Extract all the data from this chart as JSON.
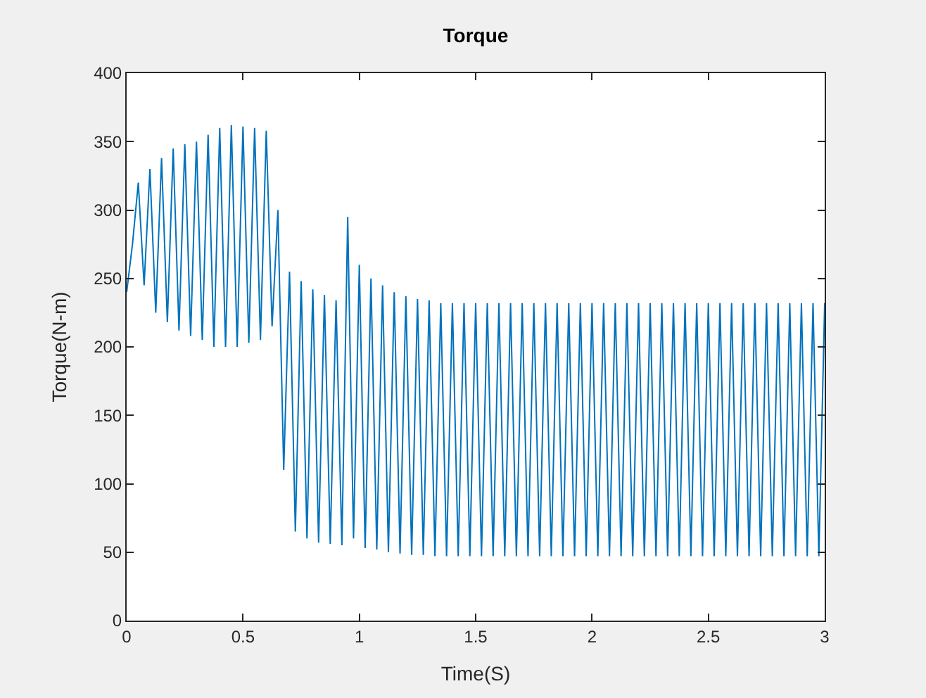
{
  "chart_data": {
    "type": "line",
    "title": "Torque",
    "xlabel": "Time(S)",
    "ylabel": "Torque(N-m)",
    "xlim": [
      0,
      3
    ],
    "xticks": [
      0,
      0.5,
      1,
      1.5,
      2,
      2.5,
      3
    ],
    "ylim": [
      0,
      400
    ],
    "yticks": [
      0,
      50,
      100,
      150,
      200,
      250,
      300,
      350,
      400
    ],
    "grid": false,
    "series": [
      {
        "color": "#0072bd",
        "x": [
          0,
          0.025,
          0.05,
          0.075,
          0.1,
          0.125,
          0.15,
          0.175,
          0.2,
          0.225,
          0.25,
          0.275,
          0.3,
          0.325,
          0.35,
          0.375,
          0.4,
          0.425,
          0.45,
          0.475,
          0.5,
          0.525,
          0.55,
          0.575,
          0.6,
          0.625,
          0.65,
          0.675,
          0.7,
          0.725,
          0.75,
          0.775,
          0.8,
          0.825,
          0.85,
          0.875,
          0.9,
          0.925,
          0.95,
          0.975,
          1,
          1.025,
          1.05,
          1.075,
          1.1,
          1.125,
          1.15,
          1.175,
          1.2,
          1.225,
          1.25,
          1.275,
          1.3,
          1.325,
          1.35,
          1.375,
          1.4,
          1.425,
          1.45,
          1.475,
          1.5,
          1.525,
          1.55,
          1.575,
          1.6,
          1.625,
          1.65,
          1.675,
          1.7,
          1.725,
          1.75,
          1.775,
          1.8,
          1.825,
          1.85,
          1.875,
          1.9,
          1.925,
          1.95,
          1.975,
          2,
          2.025,
          2.05,
          2.075,
          2.1,
          2.125,
          2.15,
          2.175,
          2.2,
          2.225,
          2.25,
          2.275,
          2.3,
          2.325,
          2.35,
          2.375,
          2.4,
          2.425,
          2.45,
          2.475,
          2.5,
          2.525,
          2.55,
          2.575,
          2.6,
          2.625,
          2.65,
          2.675,
          2.7,
          2.725,
          2.75,
          2.775,
          2.8,
          2.825,
          2.85,
          2.875,
          2.9,
          2.925,
          2.95,
          2.975,
          3
        ],
        "values": [
          240,
          275,
          320,
          245,
          330,
          225,
          338,
          218,
          345,
          212,
          348,
          208,
          350,
          205,
          355,
          200,
          360,
          200,
          362,
          200,
          361,
          203,
          360,
          205,
          358,
          215,
          300,
          110,
          255,
          65,
          248,
          60,
          242,
          57,
          238,
          56,
          234,
          55,
          295,
          60,
          260,
          53,
          250,
          52,
          245,
          50,
          240,
          49,
          237,
          48,
          235,
          48,
          234,
          47,
          232,
          47,
          232,
          47,
          232,
          47,
          232,
          47,
          232,
          47,
          232,
          47,
          232,
          47,
          232,
          47,
          232,
          47,
          232,
          47,
          232,
          47,
          232,
          47,
          232,
          47,
          232,
          47,
          232,
          47,
          232,
          47,
          232,
          47,
          232,
          47,
          232,
          47,
          232,
          47,
          232,
          47,
          232,
          47,
          232,
          47,
          232,
          47,
          232,
          47,
          232,
          47,
          232,
          47,
          232,
          47,
          232,
          47,
          232,
          47,
          232,
          47,
          232,
          47,
          232,
          47,
          232
        ]
      }
    ]
  }
}
